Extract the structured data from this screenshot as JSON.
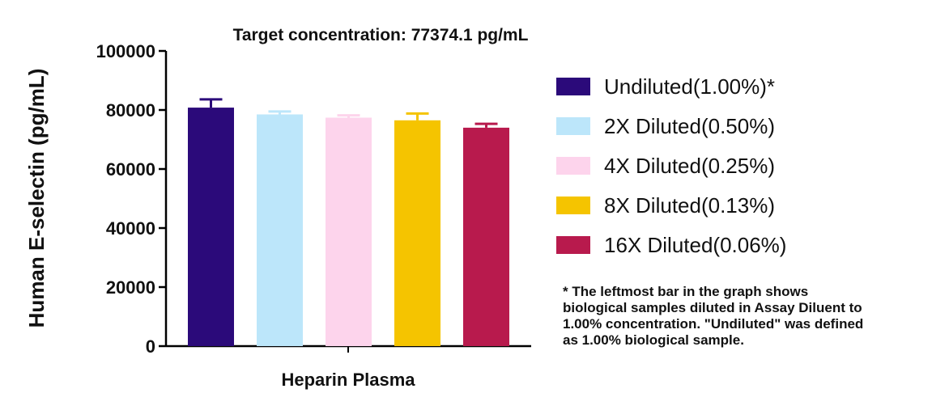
{
  "chart_data": {
    "type": "bar",
    "title": "Target concentration: 77374.1 pg/mL",
    "xlabel": "Heparin Plasma",
    "ylabel": "Human E-selectin (pg/mL)",
    "ylim": [
      0,
      100000
    ],
    "yticks": [
      0,
      20000,
      40000,
      60000,
      80000,
      100000
    ],
    "tick_labels": [
      "0",
      "20000",
      "40000",
      "60000",
      "80000",
      "100000"
    ],
    "grid": false,
    "legend_position": "right",
    "categories": [
      "Undiluted(1.00%)*",
      "2X Diluted(0.50%)",
      "4X Diluted(0.25%)",
      "8X Diluted(0.13%)",
      "16X Diluted(0.06%)"
    ],
    "values": [
      80800,
      78500,
      77400,
      76500,
      74000
    ],
    "errors": [
      2800,
      1000,
      800,
      2300,
      1300
    ],
    "colors": [
      "#2b0a7a",
      "#bce6fa",
      "#fdd4ec",
      "#f5c400",
      "#b81a4d"
    ],
    "footnote": [
      "* The leftmost bar in the graph shows",
      "biological samples diluted in Assay Diluent to",
      "1.00% concentration. \"Undiluted\" was defined",
      "as 1.00% biological sample."
    ]
  }
}
